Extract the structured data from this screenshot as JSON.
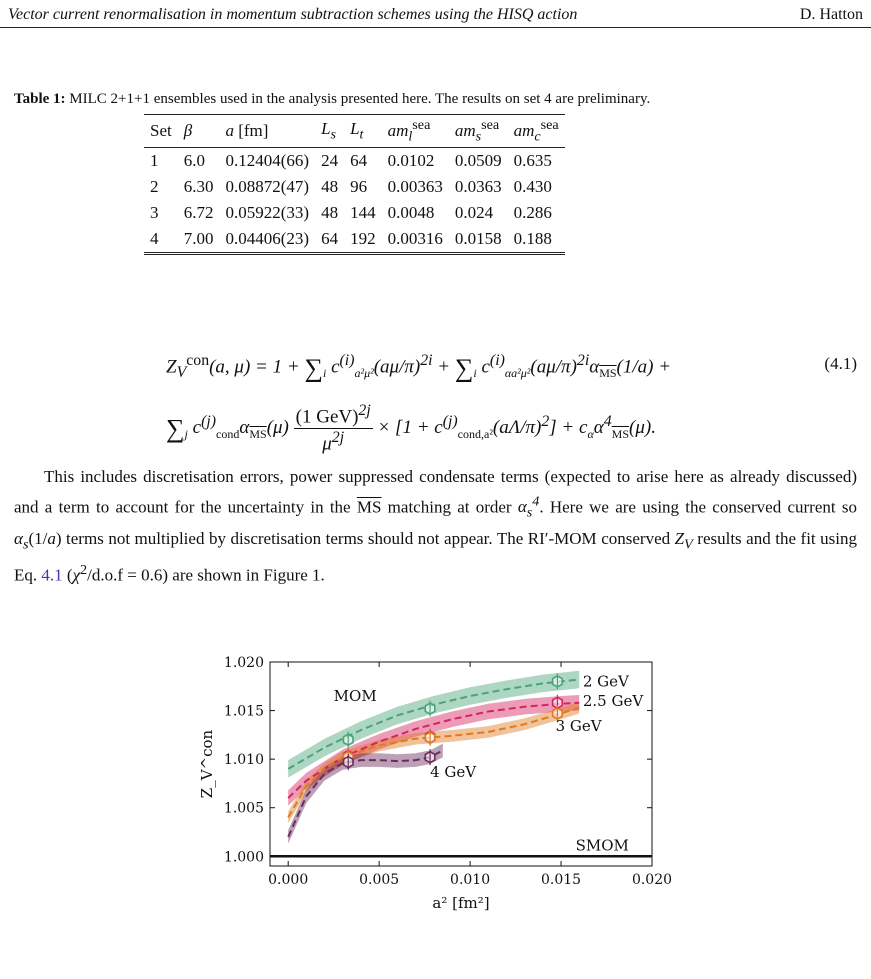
{
  "header": {
    "title": "Vector current renormalisation in momentum subtraction schemes using the HISQ action",
    "author": "D. Hatton"
  },
  "table": {
    "caption_label": "Table 1:",
    "caption_text": "MILC 2+1+1 ensembles used in the analysis presented here. The results on set 4 are preliminary.",
    "columns": [
      "Set",
      "β",
      "a [fm]",
      "Ls",
      "Lt",
      "am_l^sea",
      "am_s^sea",
      "am_c^sea"
    ],
    "rows": [
      [
        "1",
        "6.0",
        "0.12404(66)",
        "24",
        "64",
        "0.0102",
        "0.0509",
        "0.635"
      ],
      [
        "2",
        "6.30",
        "0.08872(47)",
        "48",
        "96",
        "0.00363",
        "0.0363",
        "0.430"
      ],
      [
        "3",
        "6.72",
        "0.05922(33)",
        "48",
        "144",
        "0.0048",
        "0.024",
        "0.286"
      ],
      [
        "4",
        "7.00",
        "0.04406(23)",
        "64",
        "192",
        "0.00316",
        "0.0158",
        "0.188"
      ]
    ]
  },
  "equation": {
    "number": "(4.1)"
  },
  "paragraph": {
    "p1a": "This includes discretisation errors, power suppressed condensate terms (expected to arise here as already discussed) and a term to account for the uncertainty in the ",
    "p1b": " matching at order ",
    "p1c": ". Here we are using the conserved current so ",
    "p1d": " terms not multiplied by discretisation terms should not appear. The RI′-MOM conserved ",
    "p1e": " results and the fit using Eq. ",
    "eq_ref": "4.1",
    "p1f": " (",
    "p1g": ") are shown in Figure 1."
  },
  "chart_data": {
    "type": "line",
    "xlabel": "a² [fm²]",
    "ylabel": "Z_V^con",
    "xlim": [
      -0.001,
      0.02
    ],
    "ylim": [
      0.999,
      1.02
    ],
    "xticks": [
      "0.000",
      "0.005",
      "0.010",
      "0.015",
      "0.020"
    ],
    "yticks": [
      "1.000",
      "1.005",
      "1.010",
      "1.015",
      "1.020"
    ],
    "annotations": [
      "MOM",
      "SMOM"
    ],
    "series": [
      {
        "name": "2 GeV",
        "color": "#4aa37a",
        "points_x": [
          0.0033,
          0.0078,
          0.0148
        ],
        "points_y": [
          1.012,
          1.0152,
          1.018
        ],
        "curve_x": [
          0.0,
          0.002,
          0.004,
          0.006,
          0.008,
          0.01,
          0.012,
          0.014,
          0.016
        ],
        "curve_y": [
          1.009,
          1.0112,
          1.013,
          1.0145,
          1.0156,
          1.0165,
          1.0172,
          1.0178,
          1.0182
        ],
        "band": 0.0009
      },
      {
        "name": "2.5 GeV",
        "color": "#d6245f",
        "points_x": [
          0.0033,
          0.0078,
          0.0148
        ],
        "points_y": [
          1.0103,
          1.0123,
          1.0158
        ],
        "curve_x": [
          0.0,
          0.001,
          0.002,
          0.003,
          0.005,
          0.007,
          0.009,
          0.011,
          0.013,
          0.015,
          0.016
        ],
        "curve_y": [
          1.006,
          1.0078,
          1.009,
          1.0102,
          1.0118,
          1.0131,
          1.0141,
          1.0149,
          1.0154,
          1.0157,
          1.0158
        ],
        "band": 0.0008
      },
      {
        "name": "3 GeV",
        "color": "#e07a1f",
        "points_x": [
          0.0033,
          0.0078,
          0.0148
        ],
        "points_y": [
          1.0102,
          1.0122,
          1.0147
        ],
        "curve_x": [
          0.0,
          0.001,
          0.002,
          0.003,
          0.005,
          0.007,
          0.009,
          0.011,
          0.013,
          0.015,
          0.016
        ],
        "curve_y": [
          1.004,
          1.0072,
          1.009,
          1.0102,
          1.0114,
          1.0121,
          1.0124,
          1.0128,
          1.0136,
          1.0147,
          1.0153
        ],
        "band": 0.0006
      },
      {
        "name": "4 GeV",
        "color": "#6b2d5c",
        "points_x": [
          0.0033,
          0.0078
        ],
        "points_y": [
          1.0097,
          1.0102
        ],
        "curve_x": [
          0.0,
          0.001,
          0.002,
          0.003,
          0.004,
          0.005,
          0.006,
          0.007,
          0.0078,
          0.0085
        ],
        "curve_y": [
          1.002,
          1.0062,
          1.0085,
          1.0096,
          1.0099,
          1.0099,
          1.0098,
          1.0099,
          1.0102,
          1.0109
        ],
        "band": 0.0007
      },
      {
        "name": "SMOM",
        "color": "#111111",
        "curve_x": [
          -0.001,
          0.02
        ],
        "curve_y": [
          1.0,
          1.0
        ],
        "band": 0
      }
    ]
  }
}
